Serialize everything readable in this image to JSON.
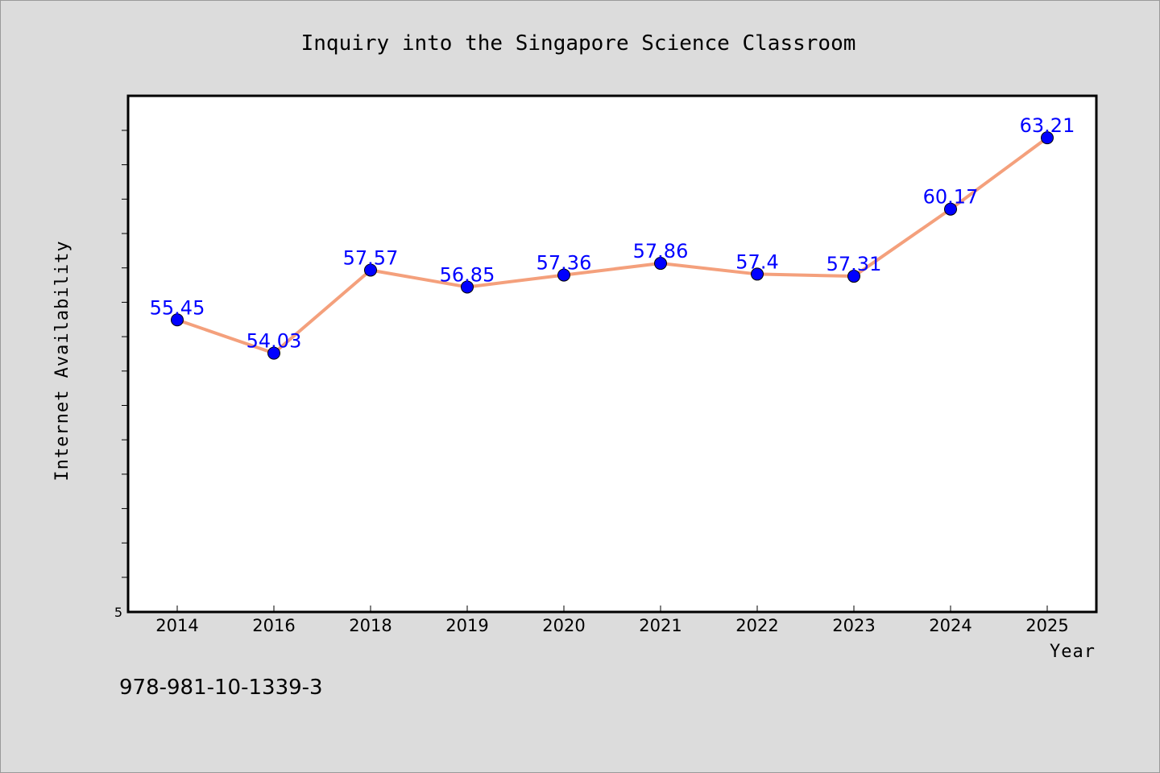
{
  "chart_data": {
    "type": "line",
    "title": "Inquiry into the Singapore Science Classroom",
    "xlabel": "Year",
    "ylabel": "Internet Availability",
    "categories": [
      "2014",
      "2016",
      "2018",
      "2019",
      "2020",
      "2021",
      "2022",
      "2023",
      "2024",
      "2025"
    ],
    "series": [
      {
        "values": [
          55.45,
          54.03,
          57.57,
          56.85,
          57.36,
          57.86,
          57.4,
          57.31,
          60.17,
          63.21
        ],
        "labels": [
          "55.45",
          "54.03",
          "57.57",
          "56.85",
          "57.36",
          "57.86",
          "57.4",
          "57.31",
          "60.17",
          "63.21"
        ],
        "line_color": "#f4a07c",
        "marker_color": "#0000ff"
      }
    ],
    "ytick_labels": [
      "5"
    ],
    "ylim": [
      43,
      65
    ],
    "grid": false,
    "legend": "none"
  },
  "annotations": {
    "isbn": "978-981-10-1339-3"
  }
}
